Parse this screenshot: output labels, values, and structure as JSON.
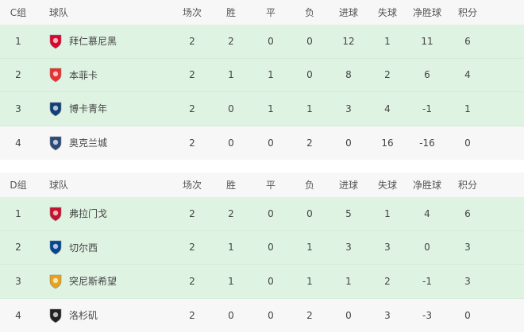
{
  "headers": [
    "场次",
    "胜",
    "平",
    "负",
    "进球",
    "失球",
    "净胜球",
    "积分"
  ],
  "team_header": "球队",
  "groups": [
    {
      "label": "C组",
      "rows": [
        {
          "rank": "1",
          "team": "拜仁慕尼黑",
          "logo": "bayern-crest",
          "color": "#dc052d",
          "hl": true,
          "stats": [
            "2",
            "2",
            "0",
            "0",
            "12",
            "1",
            "11",
            "6"
          ]
        },
        {
          "rank": "2",
          "team": "本菲卡",
          "logo": "benfica-crest",
          "color": "#e83030",
          "hl": true,
          "stats": [
            "2",
            "1",
            "1",
            "0",
            "8",
            "2",
            "6",
            "4"
          ]
        },
        {
          "rank": "3",
          "team": "博卡青年",
          "logo": "boca-crest",
          "color": "#103f79",
          "hl": true,
          "stats": [
            "2",
            "0",
            "1",
            "1",
            "3",
            "4",
            "-1",
            "1"
          ]
        },
        {
          "rank": "4",
          "team": "奥克兰城",
          "logo": "auckland-crest",
          "color": "#2a4a7a",
          "hl": false,
          "stats": [
            "2",
            "0",
            "0",
            "2",
            "0",
            "16",
            "-16",
            "0"
          ]
        }
      ]
    },
    {
      "label": "D组",
      "rows": [
        {
          "rank": "1",
          "team": "弗拉门戈",
          "logo": "flamengo-crest",
          "color": "#c8102e",
          "hl": true,
          "stats": [
            "2",
            "2",
            "0",
            "0",
            "5",
            "1",
            "4",
            "6"
          ]
        },
        {
          "rank": "2",
          "team": "切尔西",
          "logo": "chelsea-crest",
          "color": "#034694",
          "hl": true,
          "stats": [
            "2",
            "1",
            "0",
            "1",
            "3",
            "3",
            "0",
            "3"
          ]
        },
        {
          "rank": "3",
          "team": "突尼斯希望",
          "logo": "esperance-crest",
          "color": "#e8a317",
          "hl": true,
          "stats": [
            "2",
            "1",
            "0",
            "1",
            "1",
            "2",
            "-1",
            "3"
          ]
        },
        {
          "rank": "4",
          "team": "洛杉矶",
          "logo": "lafc-crest",
          "color": "#222222",
          "hl": false,
          "stats": [
            "2",
            "0",
            "0",
            "2",
            "0",
            "3",
            "-3",
            "0"
          ]
        }
      ]
    }
  ]
}
